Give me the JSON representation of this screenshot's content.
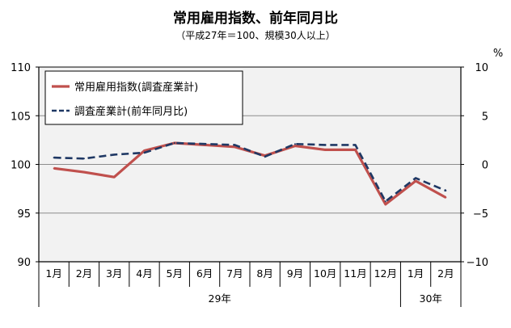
{
  "chart_data": {
    "type": "line",
    "title": "常用雇用指数、前年同月比",
    "subtitle": "（平成27年＝100、規模30人以上）",
    "categories": [
      "1月",
      "2月",
      "3月",
      "4月",
      "5月",
      "6月",
      "7月",
      "8月",
      "9月",
      "10月",
      "11月",
      "12月",
      "1月",
      "2月"
    ],
    "year_groups": [
      {
        "label": "29年",
        "months": 12
      },
      {
        "label": "30年",
        "months": 2
      }
    ],
    "left_axis": {
      "ticks": [
        "90",
        "95",
        "100",
        "105",
        "110"
      ],
      "ylim": [
        90,
        110
      ]
    },
    "right_axis": {
      "unit": "%",
      "ticks": [
        "−10",
        "−5",
        "0",
        "5",
        "10"
      ],
      "ylim": [
        -10,
        10
      ]
    },
    "series": [
      {
        "name": "常用雇用指数(調査産業計)",
        "axis": "left",
        "color": "#c0504d",
        "style": "solid",
        "values": [
          99.6,
          99.2,
          98.7,
          101.4,
          102.2,
          102.0,
          101.8,
          100.9,
          101.9,
          101.5,
          101.5,
          95.9,
          98.3,
          96.6
        ]
      },
      {
        "name": "調査産業計(前年同月比)",
        "axis": "right",
        "color": "#1f3864",
        "style": "dashed",
        "values": [
          0.7,
          0.6,
          1.0,
          1.2,
          2.2,
          2.1,
          2.0,
          0.8,
          2.1,
          2.0,
          2.0,
          -3.8,
          -1.4,
          -2.7
        ]
      }
    ],
    "grid": true,
    "legend_position": "top-left"
  }
}
